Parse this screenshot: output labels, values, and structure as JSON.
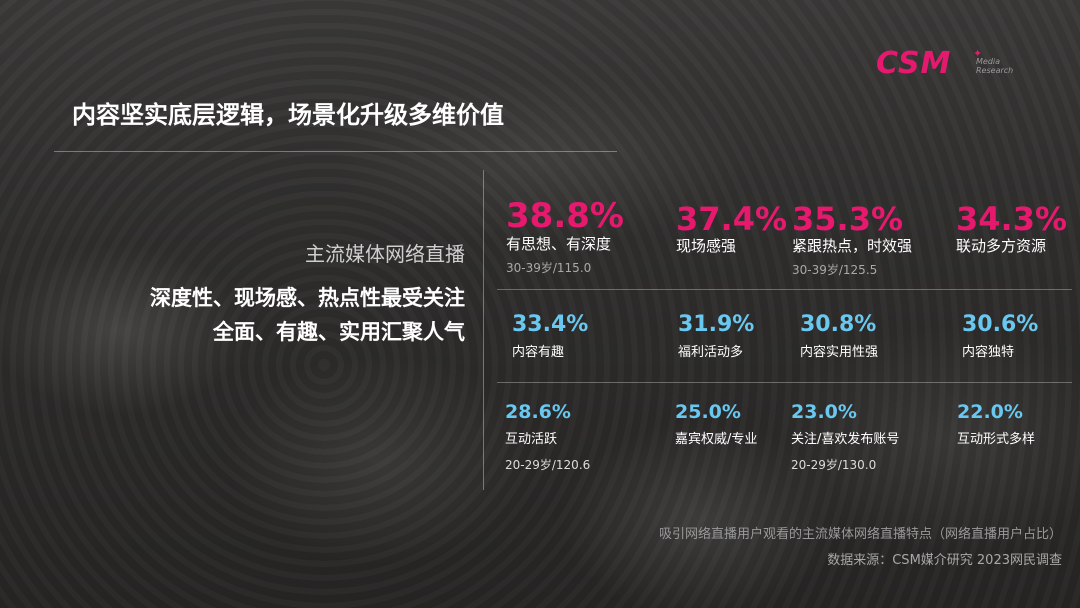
{
  "logo": {
    "main": "CSM",
    "sub_line1": "Media",
    "sub_line2": "Research"
  },
  "title": "内容坚实底层逻辑，场景化升级多维价值",
  "left_panel": {
    "subtitle": "主流媒体网络直播",
    "line1": "深度性、现场感、热点性最受关注",
    "line2": "全面、有趣、实用汇聚人气"
  },
  "stats_row1": [
    {
      "value": "38.8%",
      "label": "有思想、有深度",
      "meta": "30-39岁/115.0"
    },
    {
      "value": "37.4%",
      "label": "现场感强",
      "meta": ""
    },
    {
      "value": "35.3%",
      "label": "紧跟热点，时效强",
      "meta": "30-39岁/125.5"
    },
    {
      "value": "34.3%",
      "label": "联动多方资源",
      "meta": ""
    }
  ],
  "stats_row2": [
    {
      "value": "33.4%",
      "label": "内容有趣"
    },
    {
      "value": "31.9%",
      "label": "福利活动多"
    },
    {
      "value": "30.8%",
      "label": "内容实用性强"
    },
    {
      "value": "30.6%",
      "label": "内容独特"
    }
  ],
  "stats_row3": [
    {
      "value": "28.6%",
      "label": "互动活跃",
      "meta": "20-29岁/120.6"
    },
    {
      "value": "25.0%",
      "label": "嘉宾权威/专业",
      "meta": ""
    },
    {
      "value": "23.0%",
      "label": "关注/喜欢发布账号",
      "meta": "20-29岁/130.0"
    },
    {
      "value": "22.0%",
      "label": "互动形式多样",
      "meta": ""
    }
  ],
  "caption": "吸引网络直播用户观看的主流媒体网络直播特点（网络直播用户占比）",
  "source": "数据来源：CSM媒介研究 2023网民调查",
  "colors": {
    "accent_pink": "#e6196e",
    "accent_blue": "#69c8f0"
  }
}
